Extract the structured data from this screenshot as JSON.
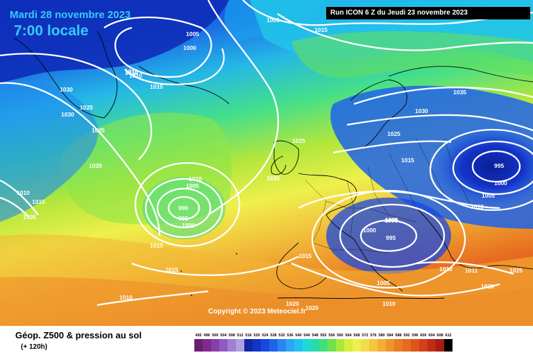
{
  "header": {
    "date": "Mardi 28 novembre 2023",
    "time": "7:00 locale",
    "run": "Run ICON 6 Z du Jeudi 23 novembre 2023"
  },
  "footer": {
    "title": "Géop. Z500 & pression au sol",
    "subtitle": "(+ 120h)"
  },
  "copyright": "Copyright © 2023 Meteociel.fr",
  "isobar_labels": [
    "1005",
    "1015",
    "1005",
    "1000",
    "1010",
    "1010",
    "1010",
    "1030",
    "1025",
    "1030",
    "1025",
    "1030",
    "1035",
    "1025",
    "1030",
    "1025",
    "1015",
    "995",
    "1000",
    "1005",
    "1010",
    "1020",
    "1010",
    "1005",
    "990",
    "995",
    "1000",
    "1015",
    "1015",
    "1010",
    "1015",
    "1010",
    "1005",
    "1000",
    "1005",
    "995",
    "1000",
    "1015",
    "1005",
    "1010",
    "1010",
    "1011",
    "1025",
    "1020",
    "1020",
    "1020",
    "1010"
  ],
  "legend": {
    "values": [
      "492",
      "496",
      "500",
      "504",
      "508",
      "512",
      "516",
      "520",
      "524",
      "528",
      "532",
      "536",
      "540",
      "544",
      "548",
      "552",
      "556",
      "560",
      "564",
      "568",
      "572",
      "576",
      "580",
      "584",
      "588",
      "592",
      "596",
      "600",
      "604",
      "608",
      "612"
    ],
    "colors": [
      "#6a1f6f",
      "#7f2b8c",
      "#8a3ea8",
      "#8f5ac2",
      "#9f80d6",
      "#b1a0e0",
      "#1226a8",
      "#1433c8",
      "#1848e0",
      "#1f63ea",
      "#2c84f0",
      "#2aa6f2",
      "#1fc2ee",
      "#1fd8d8",
      "#27dca8",
      "#3ee07a",
      "#6fe24a",
      "#a9e83a",
      "#d8ee3a",
      "#eef050",
      "#f2dc4a",
      "#f3c63e",
      "#f2ad32",
      "#ef942a",
      "#ea7c24",
      "#e66a20",
      "#e0541c",
      "#d43e18",
      "#c42a14",
      "#a81c12",
      "#000000"
    ]
  }
}
